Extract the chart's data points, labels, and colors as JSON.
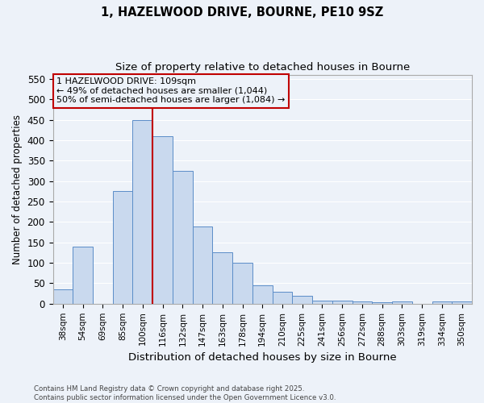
{
  "title_line1": "1, HAZELWOOD DRIVE, BOURNE, PE10 9SZ",
  "title_line2": "Size of property relative to detached houses in Bourne",
  "xlabel": "Distribution of detached houses by size in Bourne",
  "ylabel": "Number of detached properties",
  "categories": [
    "38sqm",
    "54sqm",
    "69sqm",
    "85sqm",
    "100sqm",
    "116sqm",
    "132sqm",
    "147sqm",
    "163sqm",
    "178sqm",
    "194sqm",
    "210sqm",
    "225sqm",
    "241sqm",
    "256sqm",
    "272sqm",
    "288sqm",
    "303sqm",
    "319sqm",
    "334sqm",
    "350sqm"
  ],
  "values": [
    35,
    140,
    0,
    275,
    450,
    410,
    325,
    190,
    125,
    100,
    45,
    30,
    20,
    8,
    8,
    5,
    3,
    5,
    0,
    5,
    5
  ],
  "bar_color": "#c9d9ee",
  "bar_edge_color": "#5b8dc8",
  "vline_x_index": 5,
  "vline_color": "#c00000",
  "annotation_text": "1 HAZELWOOD DRIVE: 109sqm\n← 49% of detached houses are smaller (1,044)\n50% of semi-detached houses are larger (1,084) →",
  "annotation_box_color": "#c00000",
  "ylim": [
    0,
    560
  ],
  "yticks": [
    0,
    50,
    100,
    150,
    200,
    250,
    300,
    350,
    400,
    450,
    500,
    550
  ],
  "footer_line1": "Contains HM Land Registry data © Crown copyright and database right 2025.",
  "footer_line2": "Contains public sector information licensed under the Open Government Licence v3.0.",
  "bg_color": "#edf2f9",
  "grid_color": "#ffffff"
}
